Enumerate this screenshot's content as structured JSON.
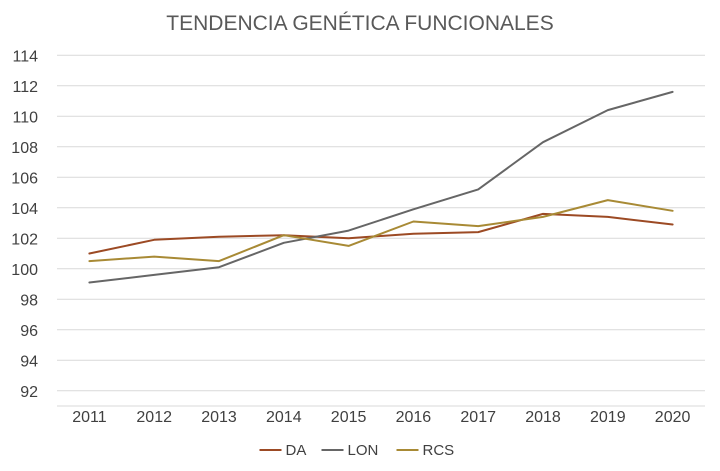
{
  "chart_data": {
    "type": "line",
    "title": "TENDENCIA GENÉTICA FUNCIONALES",
    "xlabel": "",
    "ylabel": "",
    "categories": [
      "2011",
      "2012",
      "2013",
      "2014",
      "2015",
      "2016",
      "2017",
      "2018",
      "2019",
      "2020"
    ],
    "y_ticks": [
      "92",
      "94",
      "96",
      "98",
      "100",
      "102",
      "104",
      "106",
      "108",
      "110",
      "112",
      "114"
    ],
    "ylim": [
      91,
      115
    ],
    "grid": true,
    "legend_position": "bottom",
    "series": [
      {
        "name": "DA",
        "color": "#9c4a24",
        "values": [
          101.0,
          101.9,
          102.1,
          102.2,
          102.0,
          102.3,
          102.4,
          103.6,
          103.4,
          102.9
        ]
      },
      {
        "name": "LON",
        "color": "#666666",
        "values": [
          99.1,
          99.6,
          100.1,
          101.7,
          102.5,
          103.9,
          105.2,
          108.3,
          110.4,
          111.6
        ]
      },
      {
        "name": "RCS",
        "color": "#a88a35",
        "values": [
          100.5,
          100.8,
          100.5,
          102.2,
          101.5,
          103.1,
          102.8,
          103.4,
          104.5,
          103.8
        ]
      }
    ]
  }
}
